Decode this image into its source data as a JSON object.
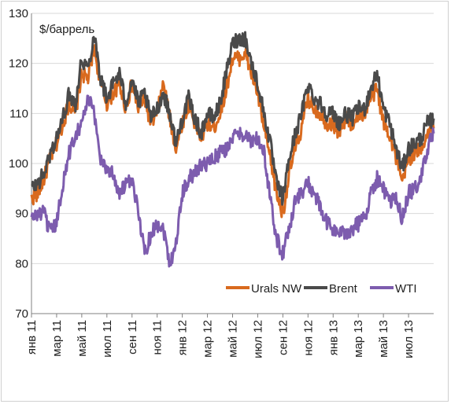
{
  "chart_data": {
    "type": "line",
    "unit_label": "$/баррель",
    "ylim": [
      70,
      130
    ],
    "yticks": [
      70,
      80,
      90,
      100,
      110,
      120,
      130
    ],
    "x_months": [
      "2011-01",
      "2011-03",
      "2011-05",
      "2011-07",
      "2011-09",
      "2011-11",
      "2012-01",
      "2012-03",
      "2012-05",
      "2012-07",
      "2012-09",
      "2012-11",
      "2013-01",
      "2013-03",
      "2013-05",
      "2013-07"
    ],
    "x_tick_labels": [
      "янв 11",
      "мар 11",
      "май 11",
      "июл 11",
      "сен 11",
      "ноя 11",
      "янв 12",
      "мар 12",
      "май 12",
      "июл 12",
      "сен 12",
      "ноя 12",
      "янв 13",
      "мар 13",
      "май 13",
      "июл 13"
    ],
    "x_range_months": [
      0,
      32
    ],
    "legend_position": "bottom-right",
    "grid": "horizontal",
    "series": [
      {
        "name": "Urals NW",
        "color": "#d96a1e",
        "points": [
          [
            0,
            93
          ],
          [
            0.5,
            94
          ],
          [
            1,
            97
          ],
          [
            1.5,
            101
          ],
          [
            2,
            104
          ],
          [
            2.5,
            108
          ],
          [
            3,
            112
          ],
          [
            3.5,
            110
          ],
          [
            4,
            118
          ],
          [
            4.5,
            117
          ],
          [
            5,
            123
          ],
          [
            5.5,
            116
          ],
          [
            6,
            112
          ],
          [
            6.5,
            114
          ],
          [
            7,
            116
          ],
          [
            7.5,
            111
          ],
          [
            8,
            116
          ],
          [
            8.5,
            111
          ],
          [
            9,
            113
          ],
          [
            9.5,
            108
          ],
          [
            10,
            110
          ],
          [
            10.5,
            116
          ],
          [
            11,
            109
          ],
          [
            11.5,
            103
          ],
          [
            12,
            108
          ],
          [
            12.5,
            112
          ],
          [
            13,
            108
          ],
          [
            13.5,
            105
          ],
          [
            14,
            108
          ],
          [
            14.5,
            107
          ],
          [
            15,
            110
          ],
          [
            15.5,
            115
          ],
          [
            16,
            121
          ],
          [
            16.5,
            121
          ],
          [
            17,
            122
          ],
          [
            17.5,
            118
          ],
          [
            18,
            114
          ],
          [
            18.5,
            107
          ],
          [
            19,
            101
          ],
          [
            19.5,
            94
          ],
          [
            20,
            90
          ],
          [
            20.5,
            98
          ],
          [
            21,
            103
          ],
          [
            21.5,
            107
          ],
          [
            22,
            113
          ],
          [
            22.5,
            111
          ],
          [
            23,
            110
          ],
          [
            23.5,
            108
          ],
          [
            24,
            108
          ],
          [
            24.5,
            106
          ],
          [
            25,
            109
          ],
          [
            25.5,
            108
          ],
          [
            26,
            110
          ],
          [
            26.5,
            110
          ],
          [
            27,
            113
          ],
          [
            27.5,
            115
          ],
          [
            28,
            108
          ],
          [
            28.5,
            106
          ],
          [
            29,
            101
          ],
          [
            29.5,
            96
          ],
          [
            30,
            101
          ],
          [
            30.5,
            102
          ],
          [
            31,
            103
          ],
          [
            31.5,
            106
          ],
          [
            32,
            107
          ]
        ]
      },
      {
        "name": "Brent",
        "color": "#4a4a4a",
        "points": [
          [
            0,
            95
          ],
          [
            0.5,
            96
          ],
          [
            1,
            98
          ],
          [
            1.5,
            102
          ],
          [
            2,
            105
          ],
          [
            2.5,
            109
          ],
          [
            3,
            114
          ],
          [
            3.5,
            112
          ],
          [
            4,
            121
          ],
          [
            4.5,
            119
          ],
          [
            5,
            126
          ],
          [
            5.5,
            117
          ],
          [
            6,
            113
          ],
          [
            6.5,
            116
          ],
          [
            7,
            118
          ],
          [
            7.5,
            112
          ],
          [
            8,
            117
          ],
          [
            8.5,
            112
          ],
          [
            9,
            114
          ],
          [
            9.5,
            109
          ],
          [
            10,
            111
          ],
          [
            10.5,
            114
          ],
          [
            11,
            110
          ],
          [
            11.5,
            104
          ],
          [
            12,
            109
          ],
          [
            12.5,
            113
          ],
          [
            13,
            109
          ],
          [
            13.5,
            106
          ],
          [
            14,
            110
          ],
          [
            14.5,
            109
          ],
          [
            15,
            112
          ],
          [
            15.5,
            118
          ],
          [
            16,
            124
          ],
          [
            16.5,
            125
          ],
          [
            17,
            125
          ],
          [
            17.5,
            120
          ],
          [
            18,
            116
          ],
          [
            18.5,
            110
          ],
          [
            19,
            104
          ],
          [
            19.5,
            96
          ],
          [
            20,
            93
          ],
          [
            20.5,
            101
          ],
          [
            21,
            106
          ],
          [
            21.5,
            110
          ],
          [
            22,
            116
          ],
          [
            22.5,
            113
          ],
          [
            23,
            112
          ],
          [
            23.5,
            110
          ],
          [
            24,
            110
          ],
          [
            24.5,
            108
          ],
          [
            25,
            110
          ],
          [
            25.5,
            109
          ],
          [
            26,
            111
          ],
          [
            26.5,
            111
          ],
          [
            27,
            115
          ],
          [
            27.5,
            118
          ],
          [
            28,
            111
          ],
          [
            28.5,
            108
          ],
          [
            29,
            103
          ],
          [
            29.5,
            99
          ],
          [
            30,
            103
          ],
          [
            30.5,
            104
          ],
          [
            31,
            105
          ],
          [
            31.5,
            108
          ],
          [
            32,
            109
          ]
        ]
      },
      {
        "name": "WTI",
        "color": "#7d5cae",
        "points": [
          [
            0,
            89
          ],
          [
            0.5,
            90
          ],
          [
            1,
            90
          ],
          [
            1.5,
            86
          ],
          [
            2,
            88
          ],
          [
            2.5,
            96
          ],
          [
            3,
            102
          ],
          [
            3.5,
            106
          ],
          [
            4,
            108
          ],
          [
            4.5,
            113
          ],
          [
            5,
            110
          ],
          [
            5.5,
            101
          ],
          [
            6,
            99
          ],
          [
            6.5,
            98
          ],
          [
            7,
            94
          ],
          [
            7.5,
            96
          ],
          [
            8,
            96
          ],
          [
            8.5,
            91
          ],
          [
            9,
            82
          ],
          [
            9.5,
            86
          ],
          [
            10,
            88
          ],
          [
            10.5,
            87
          ],
          [
            11,
            80
          ],
          [
            11.5,
            84
          ],
          [
            12,
            94
          ],
          [
            12.5,
            97
          ],
          [
            13,
            98
          ],
          [
            13.5,
            100
          ],
          [
            14,
            100
          ],
          [
            14.5,
            101
          ],
          [
            15,
            102
          ],
          [
            15.5,
            103
          ],
          [
            16,
            105
          ],
          [
            16.5,
            106
          ],
          [
            17,
            106
          ],
          [
            17.5,
            104
          ],
          [
            18,
            105
          ],
          [
            18.5,
            102
          ],
          [
            19,
            93
          ],
          [
            19.5,
            85
          ],
          [
            20,
            82
          ],
          [
            20.5,
            87
          ],
          [
            21,
            93
          ],
          [
            21.5,
            94
          ],
          [
            22,
            96
          ],
          [
            22.5,
            94
          ],
          [
            23,
            91
          ],
          [
            23.5,
            88
          ],
          [
            24,
            87
          ],
          [
            24.5,
            86
          ],
          [
            25,
            86
          ],
          [
            25.5,
            87
          ],
          [
            26,
            88
          ],
          [
            26.5,
            89
          ],
          [
            27,
            94
          ],
          [
            27.5,
            97
          ],
          [
            28,
            95
          ],
          [
            28.5,
            92
          ],
          [
            29,
            93
          ],
          [
            29.5,
            89
          ],
          [
            30,
            94
          ],
          [
            30.5,
            95
          ],
          [
            31,
            97
          ],
          [
            31.5,
            103
          ],
          [
            32,
            106
          ]
        ]
      }
    ]
  }
}
